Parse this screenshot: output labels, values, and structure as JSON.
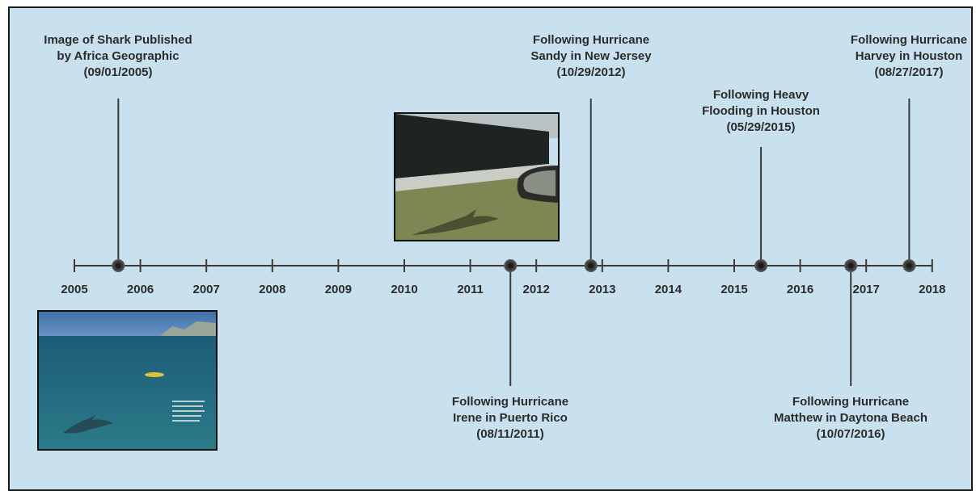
{
  "colors": {
    "background": "#c9e1ee",
    "line": "#3a3a3a",
    "text": "#2b2b2b"
  },
  "timeline": {
    "years": [
      "2005",
      "2006",
      "2007",
      "2008",
      "2009",
      "2010",
      "2011",
      "2012",
      "2013",
      "2014",
      "2015",
      "2016",
      "2017",
      "2018"
    ]
  },
  "events": [
    {
      "id": "africa",
      "date": "2005-09-01",
      "text": "Image of Shark Published\nby Africa Geographic\n(09/01/2005)",
      "side": "above"
    },
    {
      "id": "irene",
      "date": "2011-08-11",
      "text": "Following Hurricane\nIrene in Puerto Rico\n(08/11/2011)",
      "side": "below"
    },
    {
      "id": "sandy",
      "date": "2012-10-29",
      "text": "Following Hurricane\nSandy in New Jersey\n(10/29/2012)",
      "side": "above"
    },
    {
      "id": "flood",
      "date": "2015-05-29",
      "text": "Following Heavy\nFlooding in Houston\n(05/29/2015)",
      "side": "above"
    },
    {
      "id": "matthew",
      "date": "2016-10-07",
      "text": "Following Hurricane\nMatthew in Daytona Beach\n(10/07/2016)",
      "side": "below"
    },
    {
      "id": "harvey",
      "date": "2017-08-27",
      "text": "Following Hurricane\nHarvey in Houston\n(08/27/2017)",
      "side": "above"
    }
  ],
  "photos": {
    "ocean": {
      "name": "shark-kayak-ocean-photo",
      "caption": ""
    },
    "street": {
      "name": "shark-flooded-highway-photo"
    }
  }
}
